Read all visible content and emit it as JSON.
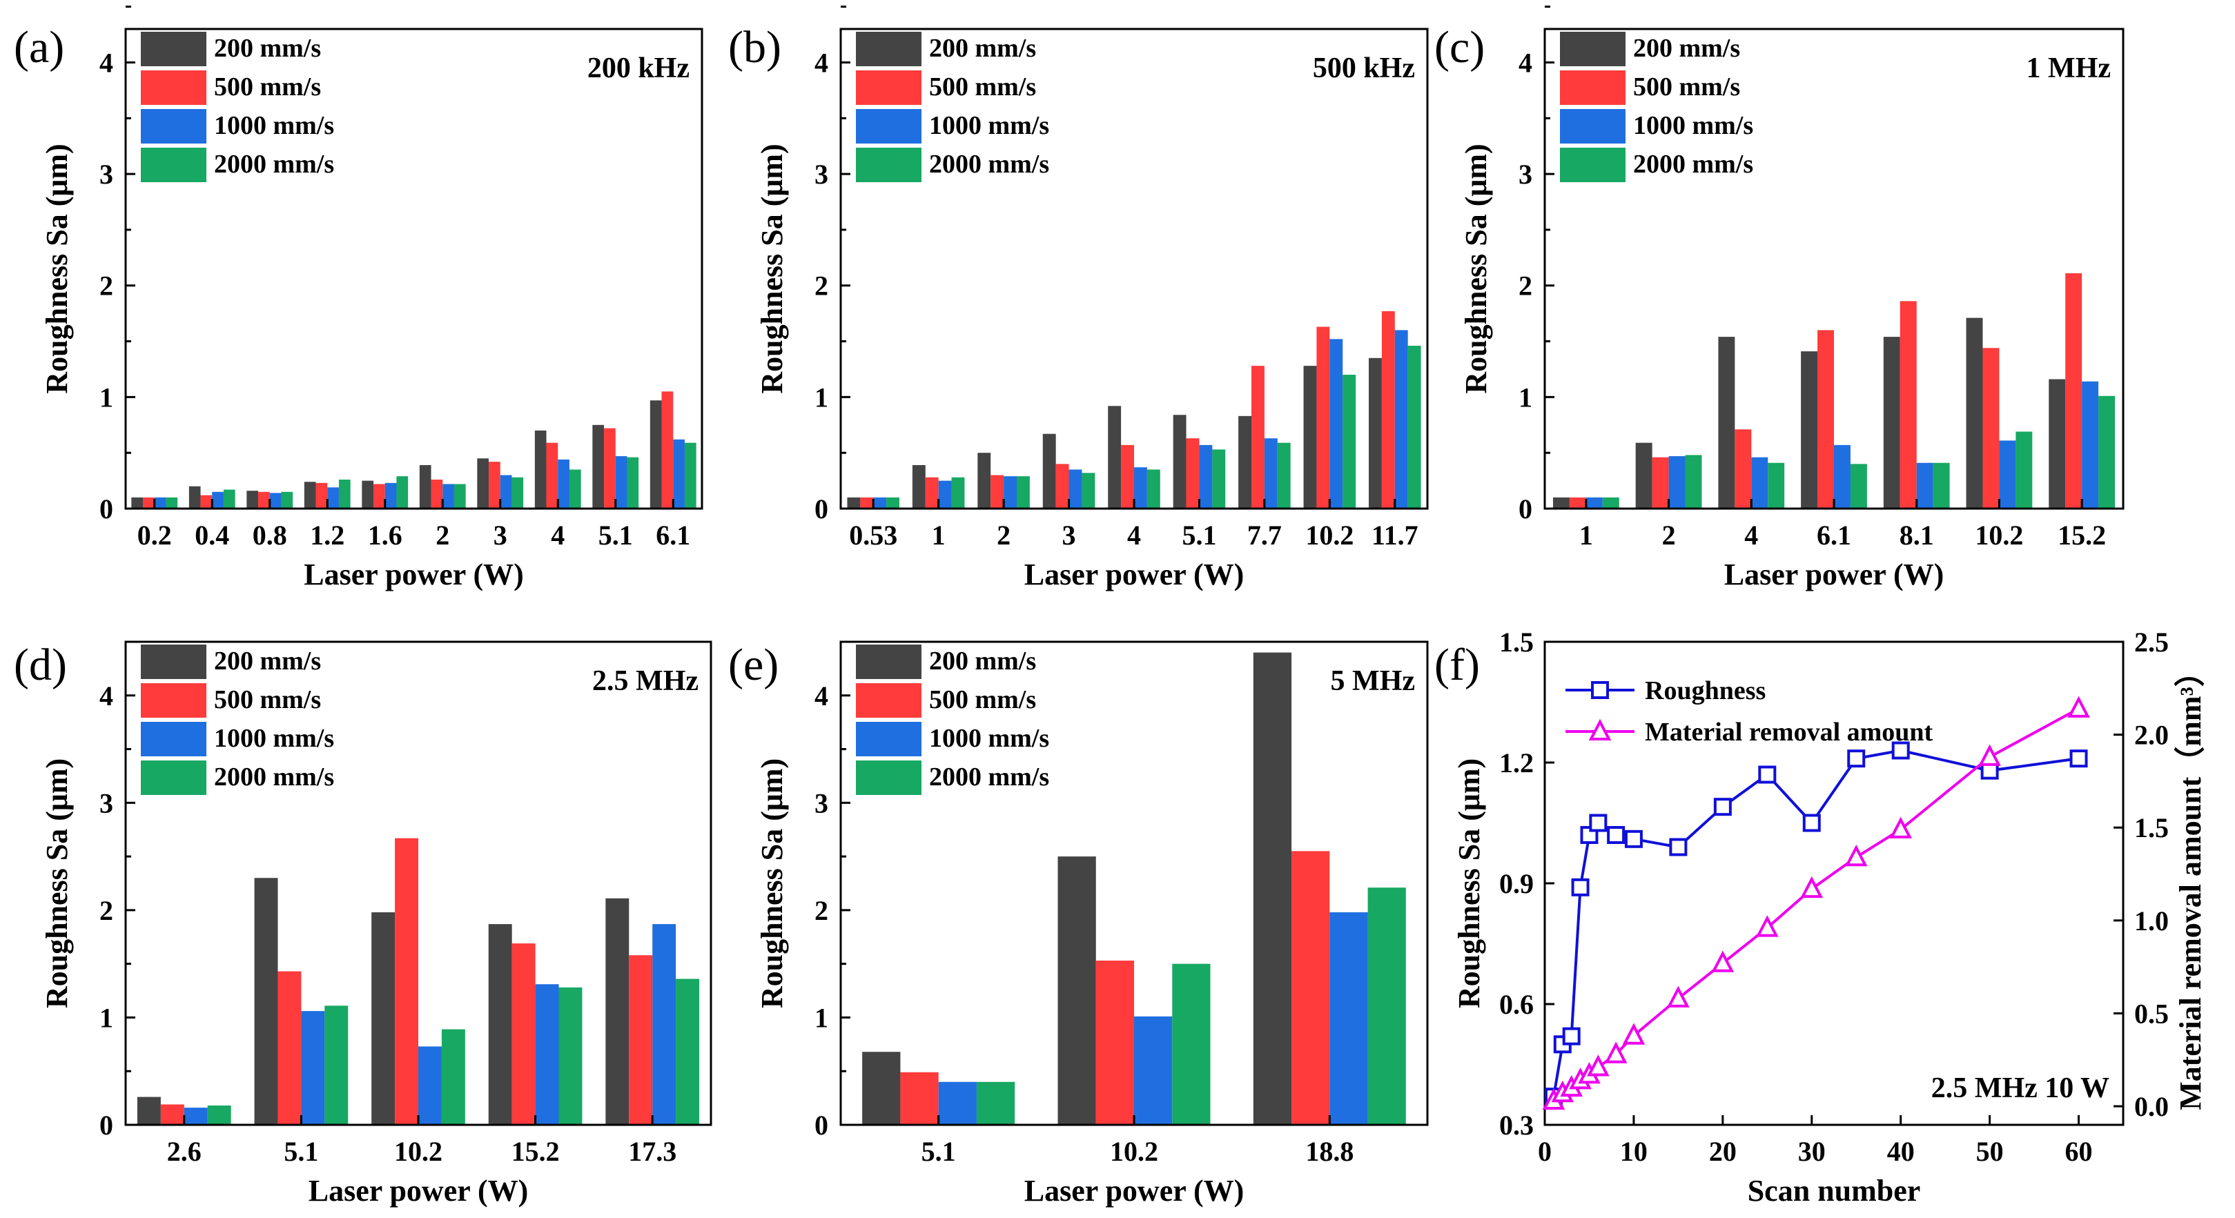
{
  "colors": {
    "s200": "#444444",
    "s500": "#ff3b3b",
    "s1000": "#1f6fe0",
    "s2000": "#17a863",
    "roughness_line": "#1010d8",
    "removal_line": "#ee00ee"
  },
  "series_names": [
    "200 mm/s",
    "500 mm/s",
    "1000 mm/s",
    "2000 mm/s"
  ],
  "chart_data": [
    {
      "type": "bar",
      "panel_label": "(a)",
      "annotation": "200 kHz",
      "xlabel": "Laser power (W)",
      "ylabel": "Roughness Sa (μm)",
      "ylim": [
        0,
        4.3
      ],
      "yticks": [
        "0",
        "1",
        "2",
        "3",
        "4"
      ],
      "legend_position": "top-left",
      "categories": [
        "0.2",
        "0.4",
        "0.8",
        "1.2",
        "1.6",
        "2",
        "3",
        "4",
        "5.1",
        "6.1"
      ],
      "series": [
        {
          "name": "200 mm/s",
          "values": [
            0.1,
            0.2,
            0.16,
            0.24,
            0.25,
            0.39,
            0.45,
            0.7,
            0.75,
            0.97
          ]
        },
        {
          "name": "500 mm/s",
          "values": [
            0.1,
            0.12,
            0.15,
            0.23,
            0.22,
            0.26,
            0.42,
            0.59,
            0.72,
            1.05
          ]
        },
        {
          "name": "1000 mm/s",
          "values": [
            0.1,
            0.15,
            0.14,
            0.19,
            0.23,
            0.22,
            0.3,
            0.44,
            0.47,
            0.62
          ]
        },
        {
          "name": "2000 mm/s",
          "values": [
            0.1,
            0.17,
            0.15,
            0.26,
            0.29,
            0.22,
            0.28,
            0.35,
            0.46,
            0.59
          ]
        }
      ]
    },
    {
      "type": "bar",
      "panel_label": "(b)",
      "annotation": "500 kHz",
      "xlabel": "Laser power (W)",
      "ylabel": "Roughness Sa (μm)",
      "ylim": [
        0,
        4.3
      ],
      "yticks": [
        "0",
        "1",
        "2",
        "3",
        "4"
      ],
      "legend_position": "top-left",
      "categories": [
        "0.53",
        "1",
        "2",
        "3",
        "4",
        "5.1",
        "7.7",
        "10.2",
        "11.7"
      ],
      "series": [
        {
          "name": "200 mm/s",
          "values": [
            0.1,
            0.39,
            0.5,
            0.67,
            0.92,
            0.84,
            0.83,
            1.28,
            1.35
          ]
        },
        {
          "name": "500 mm/s",
          "values": [
            0.1,
            0.28,
            0.3,
            0.4,
            0.57,
            0.63,
            1.28,
            1.63,
            1.77
          ]
        },
        {
          "name": "1000 mm/s",
          "values": [
            0.1,
            0.25,
            0.29,
            0.35,
            0.37,
            0.57,
            0.63,
            1.52,
            1.6
          ]
        },
        {
          "name": "2000 mm/s",
          "values": [
            0.1,
            0.28,
            0.29,
            0.32,
            0.35,
            0.53,
            0.59,
            1.2,
            1.46
          ]
        }
      ]
    },
    {
      "type": "bar",
      "panel_label": "(c)",
      "annotation": "1 MHz",
      "xlabel": "Laser power (W)",
      "ylabel": "Roughness Sa (μm)",
      "ylim": [
        0,
        4.3
      ],
      "yticks": [
        "0",
        "1",
        "2",
        "3",
        "4"
      ],
      "legend_position": "top-left",
      "categories": [
        "1",
        "2",
        "4",
        "6.1",
        "8.1",
        "10.2",
        "15.2"
      ],
      "series": [
        {
          "name": "200 mm/s",
          "values": [
            0.1,
            0.59,
            1.54,
            1.41,
            1.54,
            1.71,
            1.16
          ]
        },
        {
          "name": "500 mm/s",
          "values": [
            0.1,
            0.46,
            0.71,
            1.6,
            1.86,
            1.44,
            2.11
          ]
        },
        {
          "name": "1000 mm/s",
          "values": [
            0.1,
            0.47,
            0.46,
            0.57,
            0.41,
            0.61,
            1.14
          ]
        },
        {
          "name": "2000 mm/s",
          "values": [
            0.1,
            0.48,
            0.41,
            0.4,
            0.41,
            0.69,
            1.01
          ]
        }
      ]
    },
    {
      "type": "bar",
      "panel_label": "(d)",
      "annotation": "2.5 MHz",
      "xlabel": "Laser power (W)",
      "ylabel": "Roughness Sa (μm)",
      "ylim": [
        0,
        4.5
      ],
      "yticks": [
        "0",
        "1",
        "2",
        "3",
        "4"
      ],
      "legend_position": "top-left",
      "categories": [
        "2.6",
        "5.1",
        "10.2",
        "15.2",
        "17.3"
      ],
      "series": [
        {
          "name": "200 mm/s",
          "values": [
            0.26,
            2.3,
            1.98,
            1.87,
            2.11
          ]
        },
        {
          "name": "500 mm/s",
          "values": [
            0.19,
            1.43,
            2.67,
            1.69,
            1.58
          ]
        },
        {
          "name": "1000 mm/s",
          "values": [
            0.16,
            1.06,
            0.73,
            1.31,
            1.87
          ]
        },
        {
          "name": "2000 mm/s",
          "values": [
            0.18,
            1.11,
            0.89,
            1.28,
            1.36
          ]
        }
      ]
    },
    {
      "type": "bar",
      "panel_label": "(e)",
      "annotation": "5 MHz",
      "xlabel": "Laser power (W)",
      "ylabel": "Roughness Sa (μm)",
      "ylim": [
        0,
        4.5
      ],
      "yticks": [
        "0",
        "1",
        "2",
        "3",
        "4"
      ],
      "legend_position": "top-left",
      "categories": [
        "5.1",
        "10.2",
        "18.8"
      ],
      "series": [
        {
          "name": "200 mm/s",
          "values": [
            0.68,
            2.5,
            4.4
          ]
        },
        {
          "name": "500 mm/s",
          "values": [
            0.49,
            1.53,
            2.55
          ]
        },
        {
          "name": "1000 mm/s",
          "values": [
            0.4,
            1.01,
            1.98
          ]
        },
        {
          "name": "2000 mm/s",
          "values": [
            0.4,
            1.5,
            2.21
          ]
        }
      ]
    },
    {
      "type": "line",
      "panel_label": "(f)",
      "annotation": "2.5 MHz 10 W",
      "xlabel": "Scan number",
      "ylabel": "Roughness Sa (μm)",
      "y2label": "Material removal amount（mm³）",
      "xlim": [
        0,
        65
      ],
      "xticks": [
        "0",
        "10",
        "20",
        "30",
        "40",
        "50",
        "60"
      ],
      "ylim": [
        0.3,
        1.5
      ],
      "yticks": [
        "0.3",
        "0.6",
        "0.9",
        "1.2",
        "1.5"
      ],
      "y2lim": [
        -0.1,
        2.5
      ],
      "y2ticks": [
        "0.0",
        "0.5",
        "1.0",
        "1.5",
        "2.0",
        "2.5"
      ],
      "legend_position": "top-left",
      "series": [
        {
          "name": "Roughness",
          "axis": "left",
          "marker": "square",
          "x": [
            1,
            2,
            3,
            4,
            5,
            6,
            8,
            10,
            15,
            20,
            25,
            30,
            35,
            40,
            50,
            60
          ],
          "y": [
            0.37,
            0.5,
            0.52,
            0.89,
            1.02,
            1.05,
            1.02,
            1.01,
            0.99,
            1.09,
            1.17,
            1.05,
            1.21,
            1.23,
            1.18,
            1.21
          ]
        },
        {
          "name": "Material removal amount",
          "axis": "right",
          "marker": "triangle",
          "x": [
            1,
            2,
            3,
            4,
            5,
            6,
            8,
            10,
            15,
            20,
            25,
            30,
            35,
            40,
            50,
            60
          ],
          "y": [
            0.03,
            0.07,
            0.1,
            0.14,
            0.17,
            0.21,
            0.28,
            0.38,
            0.58,
            0.77,
            0.96,
            1.17,
            1.34,
            1.49,
            1.88,
            2.14
          ]
        }
      ]
    }
  ]
}
